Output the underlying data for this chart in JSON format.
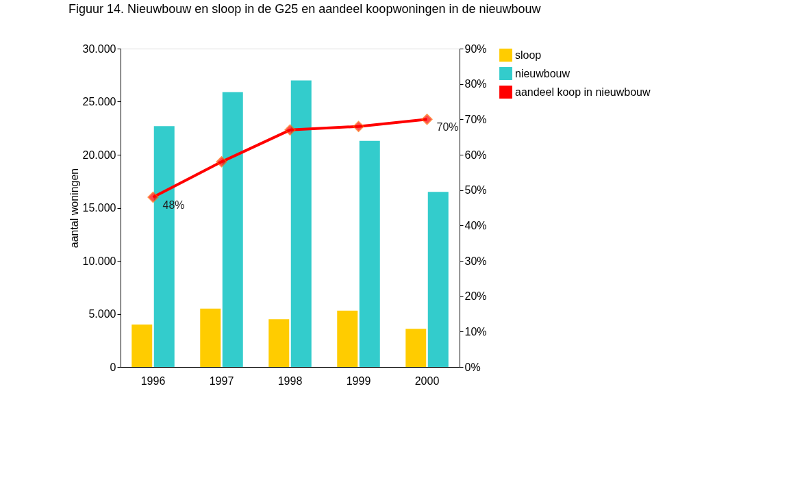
{
  "chart_data": {
    "type": "bar",
    "title": "Figuur 14. Nieuwbouw en sloop in de G25 en aandeel koopwoningen in de nieuwbouw",
    "ylabel": "aantal woningen",
    "categories": [
      "1996",
      "1997",
      "1998",
      "1999",
      "2000"
    ],
    "series": [
      {
        "name": "sloop",
        "color": "#ffcc00",
        "values": [
          4000,
          5500,
          4500,
          5300,
          3600
        ]
      },
      {
        "name": "nieuwbouw",
        "color": "#33cccc",
        "values": [
          22700,
          25900,
          27000,
          21300,
          16500
        ]
      },
      {
        "name": "aandeel koop in nieuwbouw",
        "type": "line",
        "axis": "y2",
        "color": "#ff0000",
        "marker": "diamond",
        "line_style": "solid",
        "values": [
          48,
          58,
          67,
          68,
          70
        ],
        "value_labels": [
          "48%",
          null,
          null,
          null,
          "70%"
        ]
      }
    ],
    "ylim": [
      0,
      30000
    ],
    "yticks": [
      {
        "value": 0,
        "label": "0"
      },
      {
        "value": 5000,
        "label": "5.000"
      },
      {
        "value": 10000,
        "label": "10.000"
      },
      {
        "value": 15000,
        "label": "15.000"
      },
      {
        "value": 20000,
        "label": "20.000"
      },
      {
        "value": 25000,
        "label": "25.000"
      },
      {
        "value": 30000,
        "label": "30.000"
      }
    ],
    "y2lim": [
      0,
      90
    ],
    "y2ticks": [
      {
        "value": 0,
        "label": "0%"
      },
      {
        "value": 10,
        "label": "10%"
      },
      {
        "value": 20,
        "label": "20%"
      },
      {
        "value": 30,
        "label": "30%"
      },
      {
        "value": 40,
        "label": "40%"
      },
      {
        "value": 50,
        "label": "50%"
      },
      {
        "value": 60,
        "label": "60%"
      },
      {
        "value": 70,
        "label": "70%"
      },
      {
        "value": 80,
        "label": "80%"
      },
      {
        "value": 90,
        "label": "90%"
      }
    ],
    "grid": false,
    "legend": "right"
  }
}
